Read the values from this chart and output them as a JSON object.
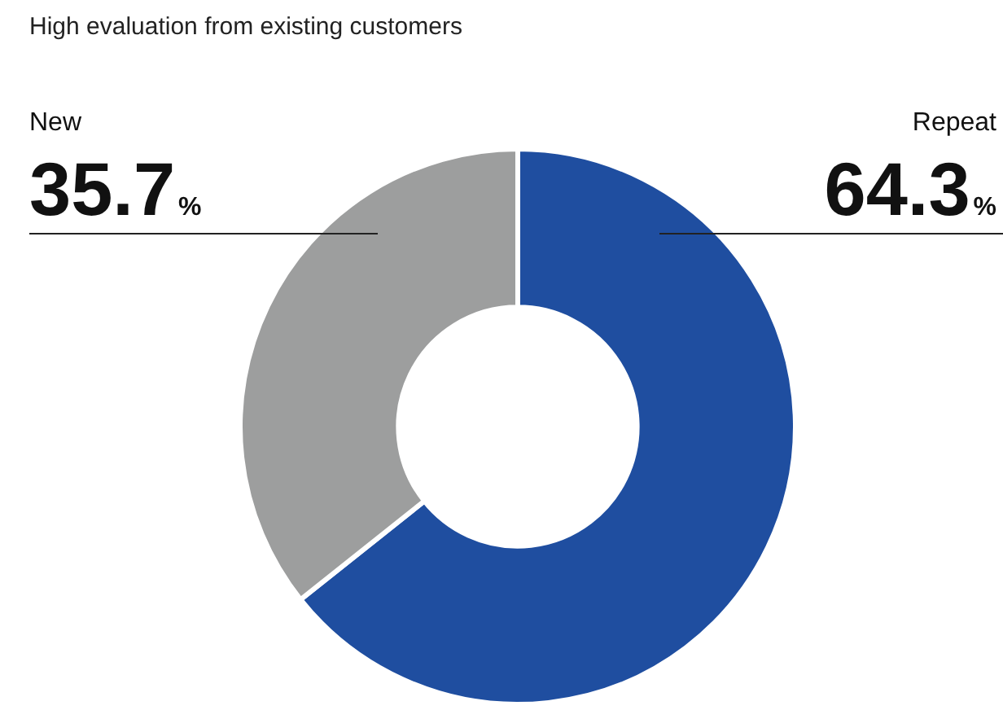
{
  "chart_data": {
    "type": "donut",
    "title": "High evaluation from existing customers",
    "categories": [
      "Repeat",
      "New"
    ],
    "values": [
      64.3,
      35.7
    ],
    "colors": [
      "#1f4ea0",
      "#9d9e9e"
    ],
    "value_labels": [
      "64.3%",
      "35.7%"
    ],
    "legend": false
  }
}
